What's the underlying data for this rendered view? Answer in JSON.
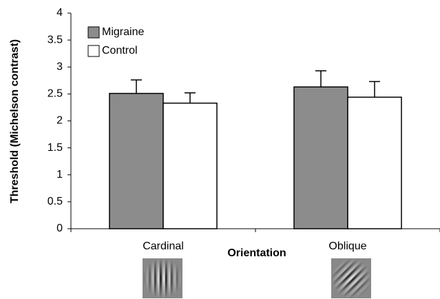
{
  "chart_data": {
    "type": "bar",
    "y_label": "Threshold (Michelson contrast)",
    "x_label": "Orientation",
    "categories": [
      "Cardinal",
      "Oblique"
    ],
    "series": [
      {
        "name": "Migraine",
        "color": "#8c8c8c",
        "values": [
          2.51,
          2.63
        ],
        "errors": [
          0.25,
          0.3
        ]
      },
      {
        "name": "Control",
        "color": "#ffffff",
        "values": [
          2.33,
          2.44
        ],
        "errors": [
          0.19,
          0.29
        ]
      }
    ],
    "ylim": [
      0,
      4
    ],
    "yticks": [
      0,
      0.5,
      1,
      1.5,
      2,
      2.5,
      3,
      3.5,
      4
    ],
    "legend": "upper-left"
  }
}
